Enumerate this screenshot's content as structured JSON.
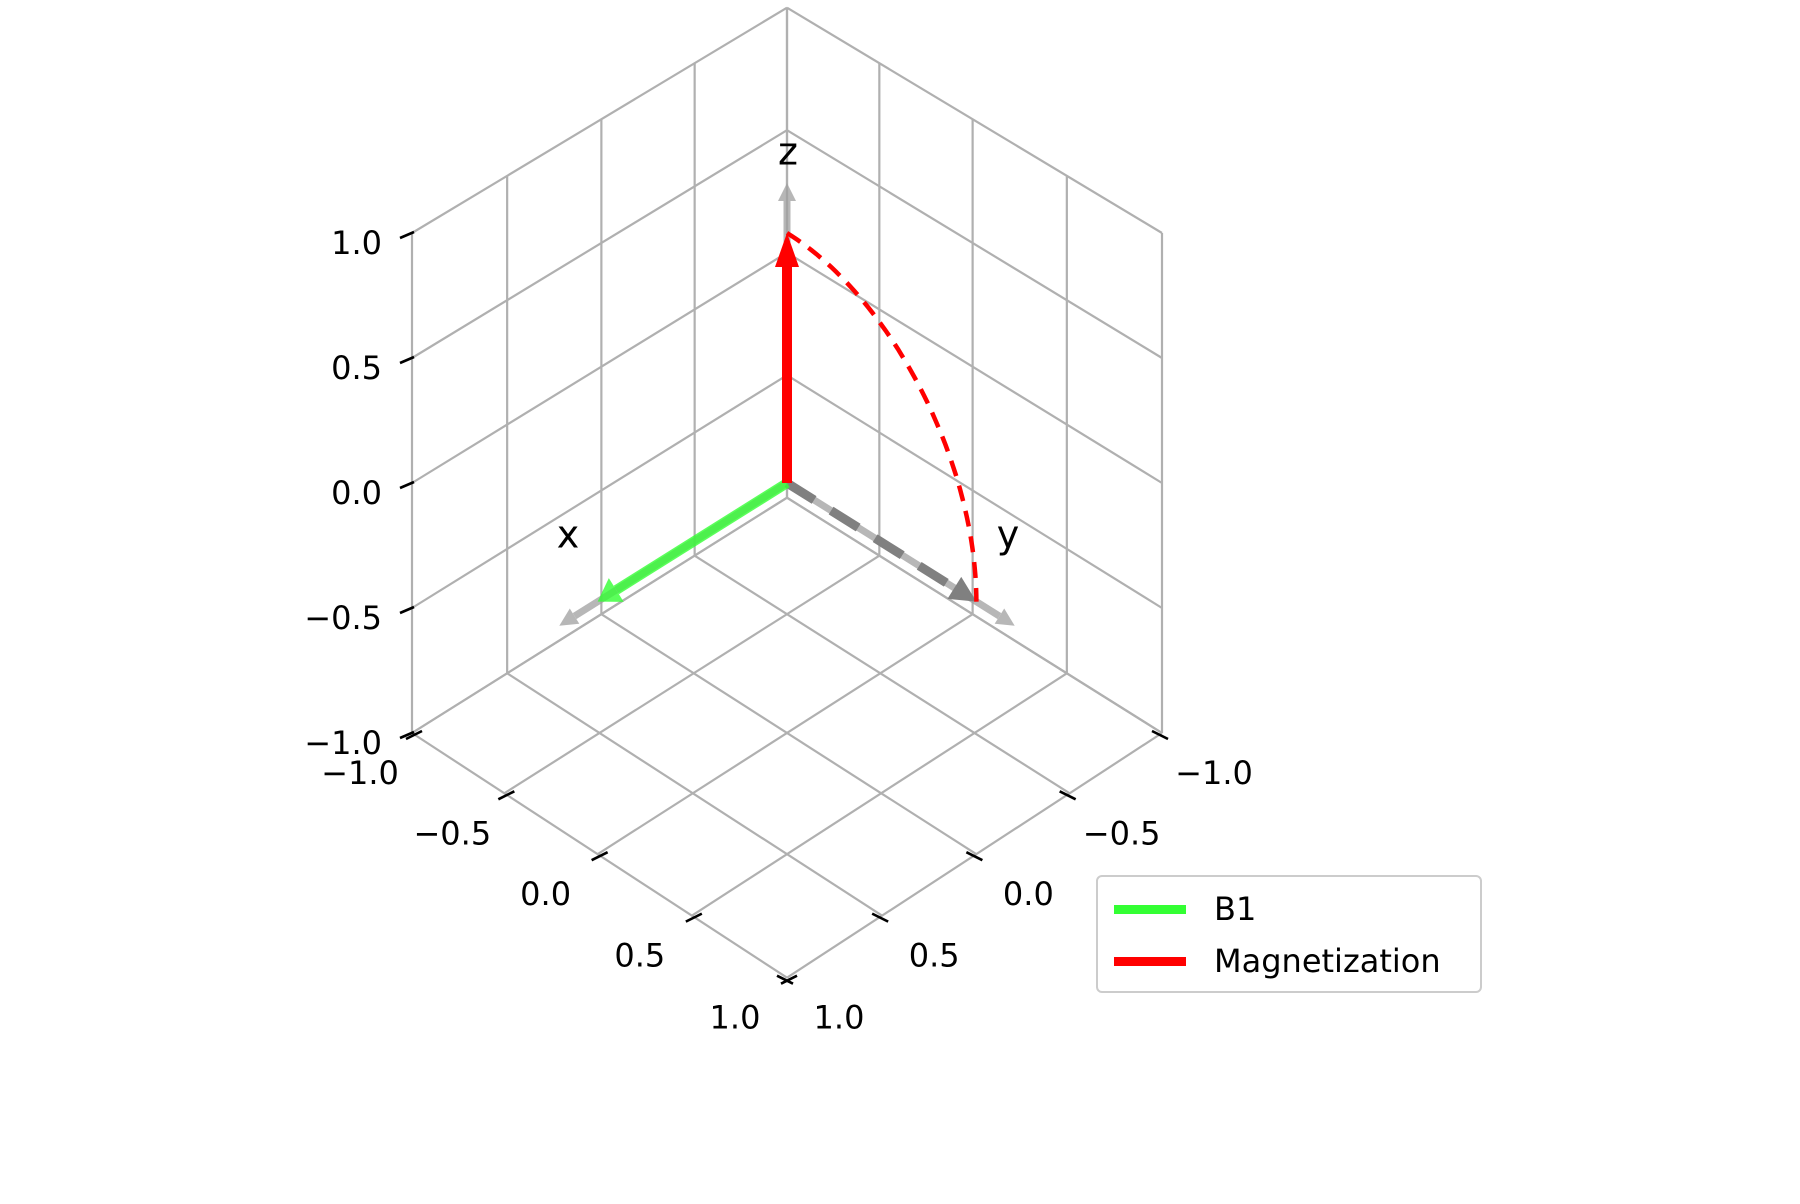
{
  "chart_data": {
    "type": "3d-vector",
    "title": "",
    "axes": {
      "x": {
        "label": "x",
        "range": [
          -1.0,
          1.0
        ],
        "ticks": [
          -1.0,
          -0.5,
          0.0,
          0.5,
          1.0
        ],
        "tick_labels": [
          "−1.0",
          "−0.5",
          "0.0",
          "0.5",
          "1.0"
        ]
      },
      "y": {
        "label": "y",
        "range": [
          -1.0,
          1.0
        ],
        "ticks": [
          -1.0,
          -0.5,
          0.0,
          0.5,
          1.0
        ],
        "tick_labels": [
          "−1.0",
          "−0.5",
          "0.0",
          "0.5",
          "1.0"
        ]
      },
      "z": {
        "label": "z",
        "range": [
          -1.0,
          1.0
        ],
        "ticks": [
          -1.0,
          -0.5,
          0.0,
          0.5,
          1.0
        ],
        "tick_labels": [
          "−1.0",
          "−0.5",
          "0.0",
          "0.5",
          "1.0"
        ]
      }
    },
    "grid": true,
    "view": {
      "elev_deg": 20,
      "azim_deg": 45
    },
    "reference_axes": [
      {
        "name": "x-axis-arrow",
        "from": [
          0,
          0,
          0
        ],
        "to": [
          1.2,
          0,
          0
        ],
        "color": "#a0a0a0",
        "label": "x",
        "label_at": [
          1.3,
          0,
          0.12
        ]
      },
      {
        "name": "y-axis-arrow",
        "from": [
          0,
          0,
          0
        ],
        "to": [
          0,
          1.2,
          0
        ],
        "color": "#a0a0a0",
        "label": "y",
        "label_at": [
          0,
          1.12,
          0.12
        ]
      },
      {
        "name": "z-axis-arrow",
        "from": [
          0,
          0,
          0
        ],
        "to": [
          0,
          0,
          1.2
        ],
        "color": "#a0a0a0",
        "label": "z",
        "label_at": [
          0,
          0,
          1.38
        ]
      }
    ],
    "series": [
      {
        "name": "B1",
        "kind": "vector",
        "from": [
          0,
          0,
          0
        ],
        "to": [
          1,
          0,
          0
        ],
        "color": "#33ff33",
        "in_legend": true
      },
      {
        "name": "Magnetization",
        "kind": "vector",
        "from": [
          0,
          0,
          0
        ],
        "to": [
          0,
          0,
          1
        ],
        "color": "#ff0000",
        "in_legend": true
      },
      {
        "name": "Magnetization-target",
        "kind": "dashed-vector",
        "from": [
          0,
          0,
          0
        ],
        "to": [
          0,
          1,
          0
        ],
        "color": "#808080",
        "in_legend": false
      },
      {
        "name": "Magnetization-path",
        "kind": "dashed-arc",
        "description": "rotation of M about x from +z to +y",
        "start": [
          0,
          0,
          1
        ],
        "end": [
          0,
          1,
          0
        ],
        "color": "#ff0000",
        "in_legend": false
      }
    ],
    "legend": {
      "position": "lower right",
      "entries": [
        {
          "label": "B1",
          "color": "#33ff33"
        },
        {
          "label": "Magnetization",
          "color": "#ff0000"
        }
      ]
    }
  },
  "legend": {
    "items": [
      {
        "label": "B1",
        "color": "#33ff33"
      },
      {
        "label": "Magnetization",
        "color": "#ff0000"
      }
    ]
  },
  "colors": {
    "grid": "#b0b0b0",
    "tick": "#000000",
    "axis_arrow": "#a0a0a0",
    "b1": "#33ff33",
    "magnetization": "#ff0000",
    "target_dash": "#808080"
  }
}
